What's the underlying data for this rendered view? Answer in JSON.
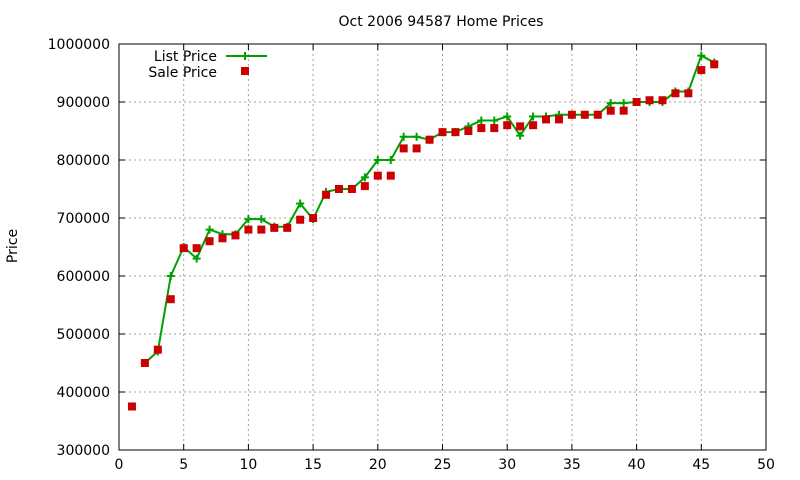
{
  "chart_data": {
    "type": "line",
    "title": "Oct 2006 94587 Home Prices",
    "xlabel": "",
    "ylabel": "Price",
    "xlim": [
      0,
      50
    ],
    "ylim": [
      300000,
      1000000
    ],
    "xticks": [
      0,
      5,
      10,
      15,
      20,
      25,
      30,
      35,
      40,
      45,
      50
    ],
    "yticks": [
      300000,
      400000,
      500000,
      600000,
      700000,
      800000,
      900000,
      1000000
    ],
    "grid": true,
    "legend_position": "top-left",
    "series": [
      {
        "name": "List Price",
        "style": "line-plus",
        "color": "#00a000",
        "x": [
          2,
          3,
          4,
          5,
          6,
          7,
          8,
          9,
          10,
          11,
          12,
          13,
          14,
          15,
          16,
          17,
          18,
          19,
          20,
          21,
          22,
          23,
          24,
          25,
          26,
          27,
          28,
          29,
          30,
          31,
          32,
          33,
          34,
          35,
          36,
          37,
          38,
          39,
          40,
          41,
          42,
          43,
          44,
          45,
          46
        ],
        "y": [
          450000,
          470000,
          600000,
          650000,
          630000,
          680000,
          672000,
          672000,
          698000,
          698000,
          685000,
          685000,
          725000,
          698000,
          745000,
          750000,
          750000,
          770000,
          800000,
          800000,
          840000,
          840000,
          835000,
          848000,
          848000,
          858000,
          868000,
          868000,
          875000,
          842000,
          875000,
          875000,
          878000,
          878000,
          878000,
          878000,
          898000,
          898000,
          900000,
          900000,
          900000,
          918000,
          918000,
          980000,
          968000
        ]
      },
      {
        "name": "Sale Price",
        "style": "square",
        "color": "#cc0000",
        "x": [
          1,
          2,
          3,
          4,
          5,
          6,
          7,
          8,
          9,
          10,
          11,
          12,
          13,
          14,
          15,
          16,
          17,
          18,
          19,
          20,
          21,
          22,
          23,
          24,
          25,
          26,
          27,
          28,
          29,
          30,
          31,
          32,
          33,
          34,
          35,
          36,
          37,
          38,
          39,
          40,
          41,
          42,
          43,
          44,
          45,
          46
        ],
        "y": [
          375000,
          450000,
          473000,
          560000,
          648000,
          648000,
          660000,
          665000,
          670000,
          680000,
          680000,
          683000,
          683000,
          697000,
          700000,
          740000,
          750000,
          750000,
          755000,
          773000,
          773000,
          820000,
          820000,
          835000,
          848000,
          848000,
          850000,
          855000,
          855000,
          860000,
          858000,
          860000,
          870000,
          870000,
          878000,
          878000,
          878000,
          885000,
          885000,
          900000,
          903000,
          903000,
          915000,
          915000,
          955000,
          965000
        ]
      }
    ]
  }
}
